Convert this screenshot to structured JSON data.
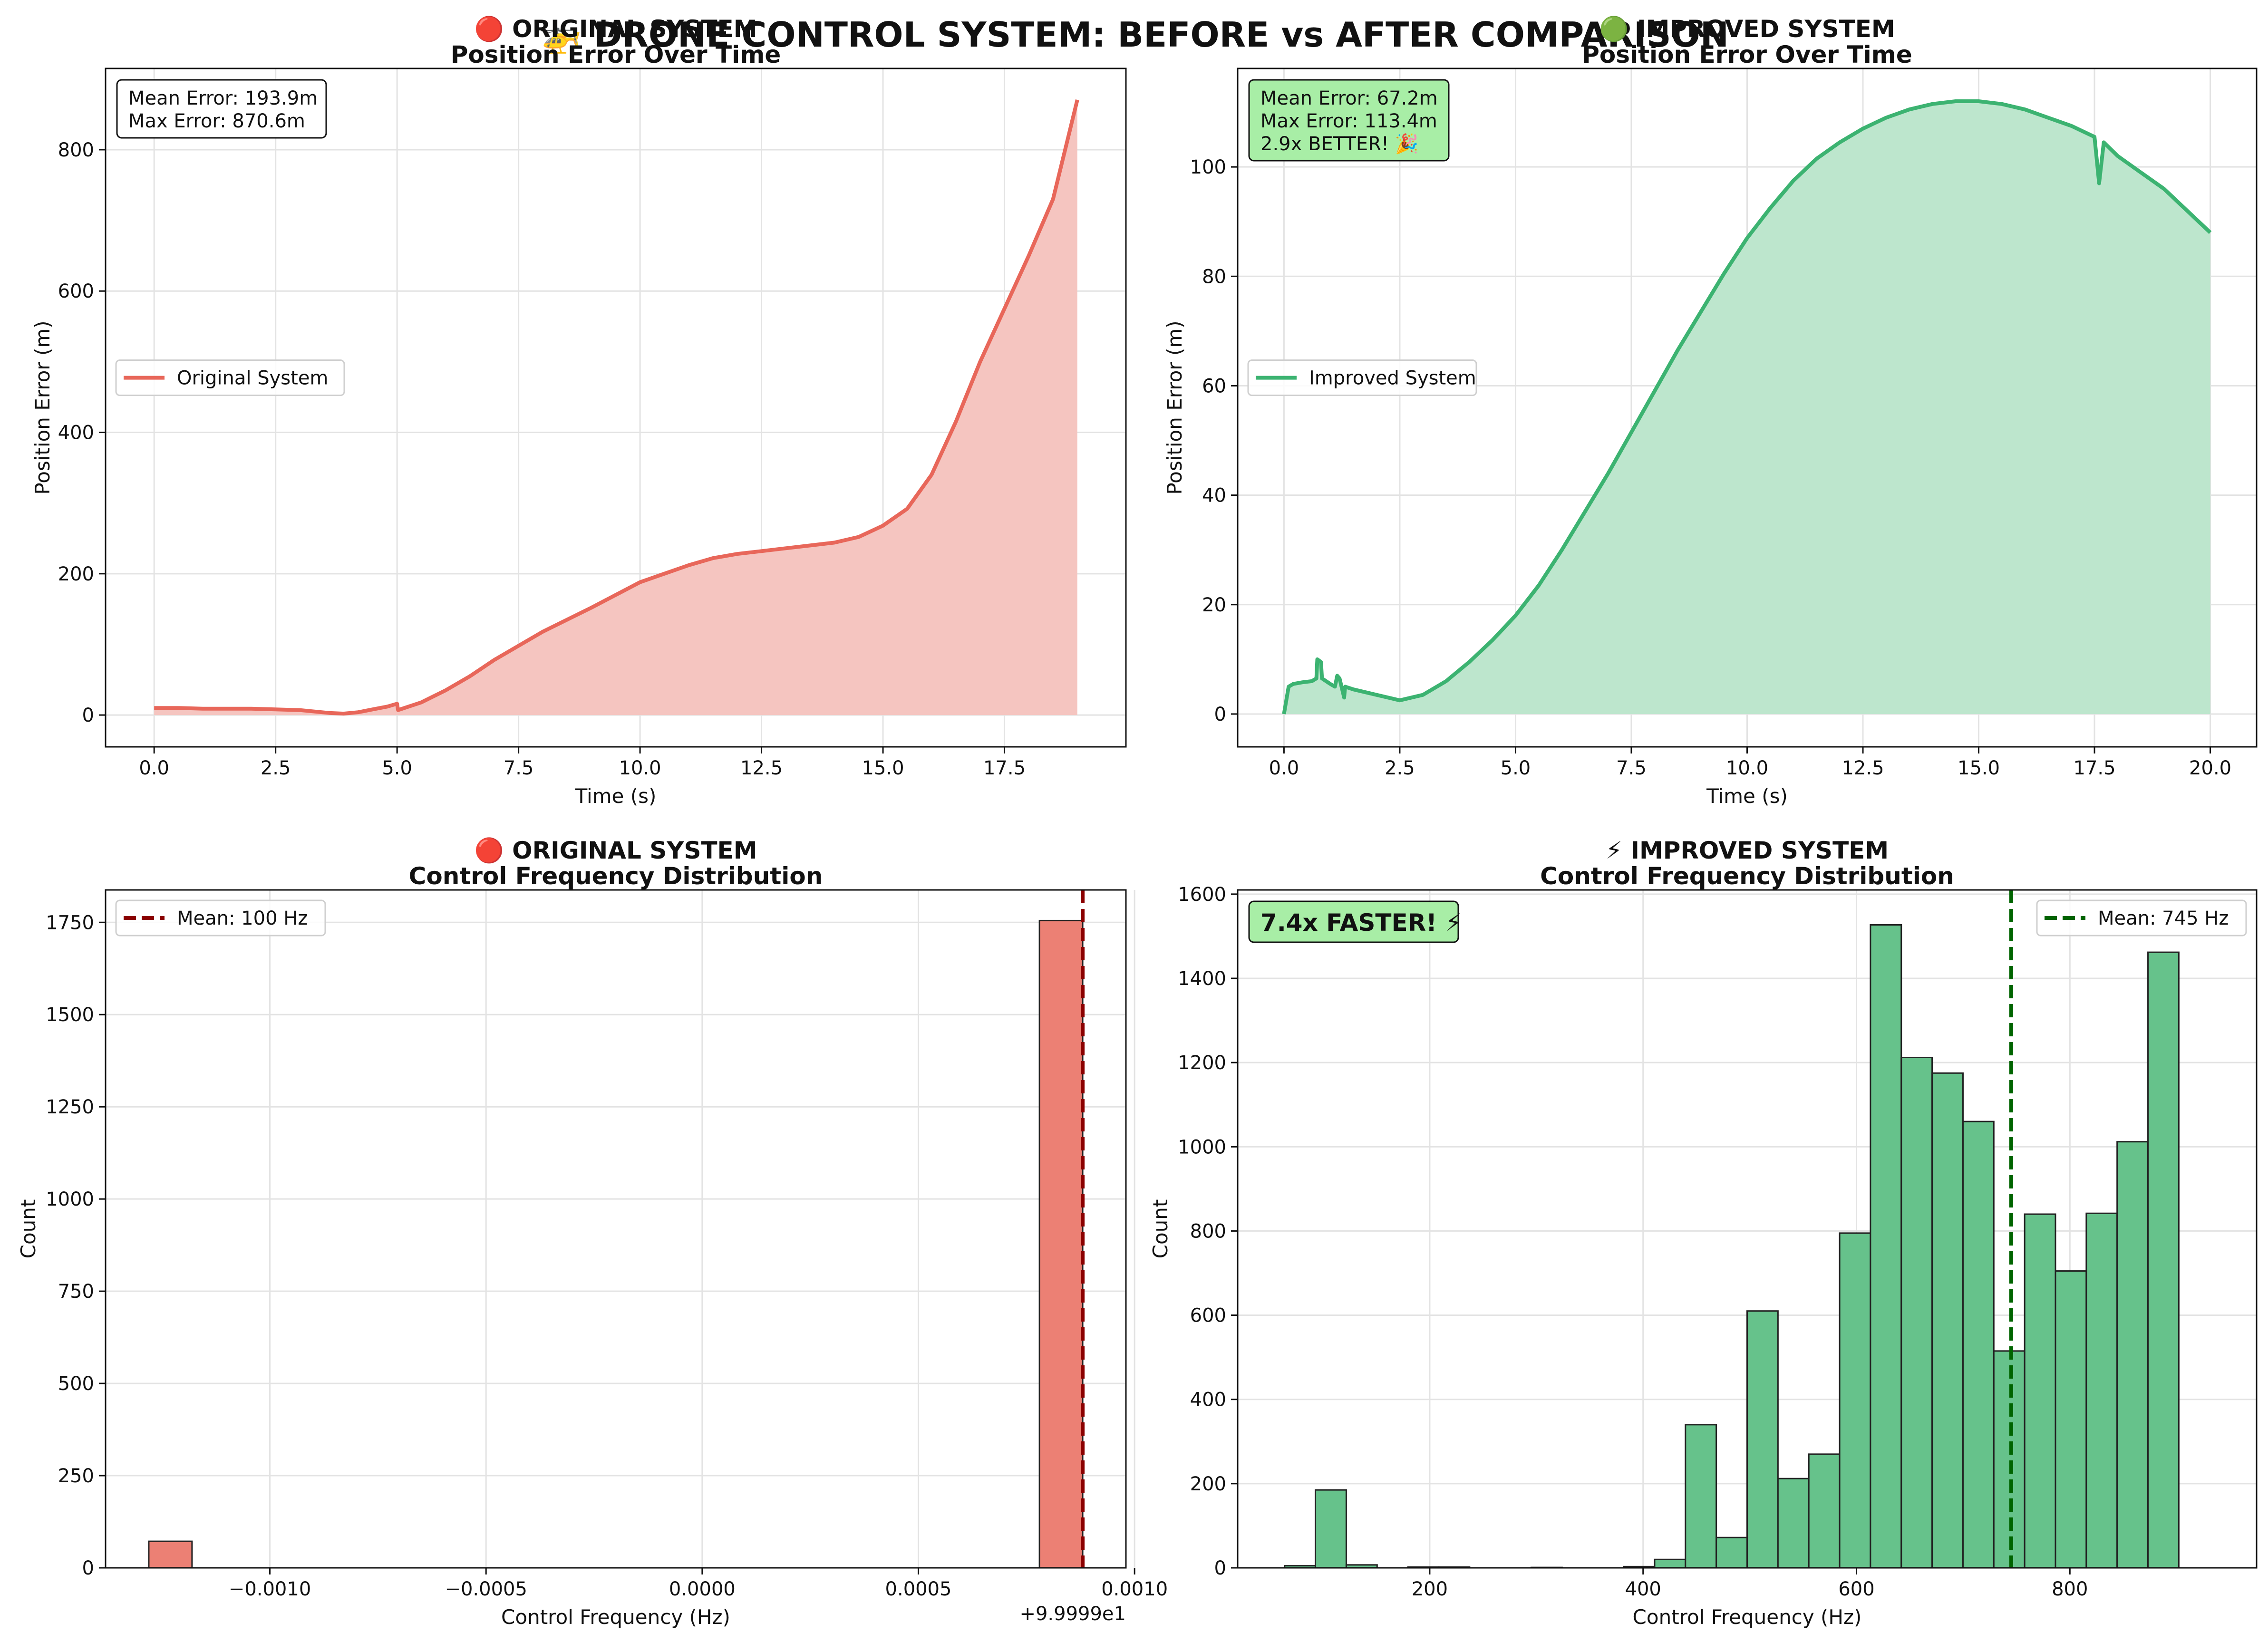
{
  "title": "🚁 DRONE CONTROL SYSTEM: BEFORE vs AFTER COMPARISON",
  "colors": {
    "original": "#e8675a",
    "original_fill": "#f5c5c0",
    "original_hist": "#ec8074",
    "original_mean": "#8b0000",
    "improved": "#3cb371",
    "improved_fill": "#bde6cd",
    "improved_hist": "#66c28b",
    "improved_mean": "#006400",
    "improvement_box": "#a8eea6"
  },
  "chart_data": [
    {
      "type": "area",
      "title": [
        "🔴 ORIGINAL SYSTEM",
        "Position Error Over Time"
      ],
      "xlabel": "Time (s)",
      "ylabel": "Position Error (m)",
      "xlim": [
        -1.0,
        20.0
      ],
      "ylim": [
        -45,
        915
      ],
      "xticks": [
        0.0,
        2.5,
        5.0,
        7.5,
        10.0,
        12.5,
        15.0,
        17.5
      ],
      "xtick_labels": [
        "0.0",
        "2.5",
        "5.0",
        "7.5",
        "10.0",
        "12.5",
        "15.0",
        "17.5"
      ],
      "yticks": [
        0,
        200,
        400,
        600,
        800
      ],
      "ytick_labels": [
        "0",
        "200",
        "400",
        "600",
        "800"
      ],
      "grid": true,
      "legend": {
        "placement": "center-left",
        "entries": [
          "Original System"
        ]
      },
      "annotation": [
        "Mean Error: 193.9m",
        "Max Error: 870.6m"
      ],
      "series": [
        {
          "name": "Original System",
          "x": [
            0,
            0.5,
            1.0,
            1.5,
            2.0,
            2.5,
            3.0,
            3.3,
            3.6,
            3.9,
            4.2,
            4.5,
            4.8,
            5.0,
            5.02,
            5.5,
            6.0,
            6.5,
            7.0,
            7.5,
            8.0,
            8.5,
            9.0,
            9.5,
            10.0,
            10.5,
            11.0,
            11.5,
            12.0,
            12.5,
            13.0,
            13.5,
            14.0,
            14.5,
            15.0,
            15.5,
            16.0,
            16.5,
            17.0,
            17.5,
            18.0,
            18.5,
            19.0
          ],
          "y": [
            10,
            10,
            9,
            9,
            9,
            8,
            7,
            5,
            3,
            2,
            4,
            8,
            12,
            16,
            7,
            18,
            35,
            55,
            78,
            98,
            118,
            135,
            152,
            170,
            188,
            200,
            212,
            222,
            228,
            232,
            236,
            240,
            244,
            252,
            268,
            292,
            340,
            415,
            500,
            575,
            650,
            730,
            870.6
          ]
        }
      ]
    },
    {
      "type": "area",
      "title": [
        "🟢 IMPROVED SYSTEM",
        "Position Error Over Time"
      ],
      "xlabel": "Time (s)",
      "ylabel": "Position Error (m)",
      "xlim": [
        -1.0,
        21.0
      ],
      "ylim": [
        -6,
        118
      ],
      "xticks": [
        0.0,
        2.5,
        5.0,
        7.5,
        10.0,
        12.5,
        15.0,
        17.5,
        20.0
      ],
      "xtick_labels": [
        "0.0",
        "2.5",
        "5.0",
        "7.5",
        "10.0",
        "12.5",
        "15.0",
        "17.5",
        "20.0"
      ],
      "yticks": [
        0,
        20,
        40,
        60,
        80,
        100
      ],
      "ytick_labels": [
        "0",
        "20",
        "40",
        "60",
        "80",
        "100"
      ],
      "grid": true,
      "legend": {
        "placement": "center-left",
        "entries": [
          "Improved System"
        ]
      },
      "annotation": [
        "Mean Error: 67.2m",
        "Max Error: 113.4m",
        "2.9x BETTER! 🎉"
      ],
      "series": [
        {
          "name": "Improved System",
          "x": [
            0,
            0.1,
            0.2,
            0.4,
            0.6,
            0.7,
            0.72,
            0.8,
            0.82,
            1.0,
            1.1,
            1.15,
            1.2,
            1.3,
            1.32,
            1.5,
            2.0,
            2.5,
            3.0,
            3.5,
            4.0,
            4.5,
            5.0,
            5.5,
            6.0,
            6.5,
            7.0,
            7.5,
            8.0,
            8.5,
            9.0,
            9.5,
            10.0,
            10.5,
            11.0,
            11.5,
            12.0,
            12.5,
            13.0,
            13.5,
            14.0,
            14.5,
            15.0,
            15.5,
            16.0,
            16.5,
            17.0,
            17.5,
            17.6,
            17.7,
            18.0,
            18.5,
            19.0,
            19.5,
            20.0
          ],
          "y": [
            0,
            5,
            5.5,
            5.8,
            6,
            6.5,
            10,
            9.5,
            6.5,
            5.5,
            5,
            7,
            6.5,
            3,
            5,
            4.5,
            3.5,
            2.5,
            3.5,
            6,
            9.5,
            13.5,
            18,
            23.5,
            30,
            37,
            44,
            51.5,
            59,
            66.5,
            73.5,
            80.5,
            87,
            92.5,
            97.5,
            101.5,
            104.5,
            107,
            109,
            110.5,
            111.5,
            112,
            112,
            111.5,
            110.5,
            109,
            107.5,
            105.5,
            97,
            104.5,
            102,
            99,
            96,
            92,
            88
          ]
        }
      ]
    },
    {
      "type": "bar",
      "title": [
        "🔴 ORIGINAL SYSTEM",
        "Control Frequency Distribution"
      ],
      "xlabel": "Control Frequency (Hz)",
      "ylabel": "Count",
      "xlim": [
        -0.00138,
        0.00098
      ],
      "ylim": [
        0,
        1838
      ],
      "xticks": [
        -0.001,
        -0.0005,
        0.0,
        0.0005,
        0.001
      ],
      "xtick_labels": [
        "−0.0010",
        "−0.0005",
        "0.0000",
        "0.0005",
        "0.0010"
      ],
      "x_offset_label": "+9.9999e1",
      "yticks": [
        0,
        250,
        500,
        750,
        1000,
        1250,
        1500,
        1750
      ],
      "ytick_labels": [
        "0",
        "250",
        "500",
        "750",
        "1000",
        "1250",
        "1500",
        "1750"
      ],
      "grid": true,
      "legend": {
        "placement": "top-left",
        "entries": [
          "Mean: 100 Hz"
        ]
      },
      "mean_line": {
        "x": 0.00088,
        "label": "Mean: 100 Hz"
      },
      "bins": [
        {
          "x0": -0.00128,
          "x1": -0.00118,
          "count": 72
        },
        {
          "x0": 0.00078,
          "x1": 0.00088,
          "count": 1755
        }
      ]
    },
    {
      "type": "bar",
      "title": [
        "⚡ IMPROVED SYSTEM",
        "Control Frequency Distribution"
      ],
      "xlabel": "Control Frequency (Hz)",
      "ylabel": "Count",
      "xlim": [
        20,
        975
      ],
      "ylim": [
        0,
        1610
      ],
      "xticks": [
        200,
        400,
        600,
        800
      ],
      "xtick_labels": [
        "200",
        "400",
        "600",
        "800"
      ],
      "yticks": [
        0,
        200,
        400,
        600,
        800,
        1000,
        1200,
        1400,
        1600
      ],
      "ytick_labels": [
        "0",
        "200",
        "400",
        "600",
        "800",
        "1000",
        "1200",
        "1400",
        "1600"
      ],
      "grid": true,
      "legend": {
        "placement": "top-right",
        "entries": [
          "Mean: 745 Hz"
        ]
      },
      "annotation": [
        "7.4x FASTER! ⚡"
      ],
      "mean_line": {
        "x": 745,
        "label": "Mean: 745 Hz"
      },
      "bin_start": 64,
      "bin_width": 28.9,
      "counts": [
        5,
        185,
        7,
        0,
        2,
        2,
        0,
        0,
        1,
        0,
        0,
        3,
        20,
        340,
        72,
        610,
        212,
        270,
        795,
        1527,
        1212,
        1175,
        1060,
        515,
        840,
        705,
        842,
        1012,
        1462,
        0
      ]
    }
  ]
}
